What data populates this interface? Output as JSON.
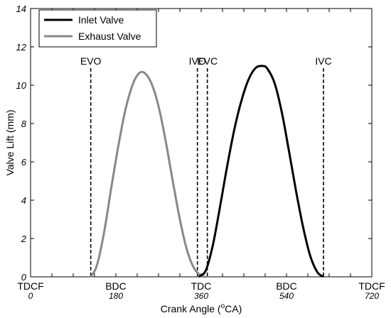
{
  "chart_data": {
    "type": "line",
    "xlabel": "Crank Angle (",
    "xlabel_sup": "o",
    "xlabel_tail": "CA)",
    "ylabel": "Valve Lift (mm)",
    "xlim": [
      0,
      720
    ],
    "ylim": [
      0,
      14
    ],
    "yticks": [
      0,
      2,
      4,
      6,
      8,
      10,
      12,
      14
    ],
    "xticks": [
      0,
      45,
      90,
      135,
      180,
      225,
      270,
      315,
      360,
      405,
      450,
      495,
      540,
      585,
      630,
      675,
      720
    ],
    "xtick_labels": [
      {
        "x": 0,
        "top": "TDCF",
        "bottom": "0"
      },
      {
        "x": 180,
        "top": "BDC",
        "bottom": "180"
      },
      {
        "x": 360,
        "top": "TDC",
        "bottom": "360"
      },
      {
        "x": 540,
        "top": "BDC",
        "bottom": "540"
      },
      {
        "x": 720,
        "top": "TDCF",
        "bottom": "720"
      }
    ],
    "legend_position": "top-left",
    "series": [
      {
        "name": "Inlet Valve",
        "color": "#000000",
        "x": [
          355,
          370,
          385,
          400,
          415,
          430,
          445,
          460,
          475,
          490,
          500,
          515,
          530,
          545,
          560,
          575,
          590,
          605,
          618
        ],
        "y": [
          0,
          0.35,
          1.7,
          3.7,
          5.8,
          7.7,
          9.2,
          10.3,
          10.9,
          11.0,
          10.85,
          10.1,
          8.6,
          6.6,
          4.5,
          2.6,
          1.1,
          0.25,
          0
        ]
      },
      {
        "name": "Exhaust Valve",
        "color": "#888888",
        "x": [
          127,
          140,
          155,
          170,
          185,
          200,
          215,
          228,
          240,
          255,
          270,
          285,
          300,
          315,
          330,
          345,
          360,
          370
        ],
        "y": [
          0,
          0.6,
          2.3,
          4.6,
          6.8,
          8.7,
          10.0,
          10.6,
          10.65,
          10.1,
          8.9,
          7.1,
          5.0,
          3.0,
          1.4,
          0.45,
          0.05,
          0
        ]
      }
    ],
    "markers": [
      {
        "label": "EVO",
        "x": 127
      },
      {
        "label": "IVO",
        "x": 352
      },
      {
        "label": "EVC",
        "x": 373
      },
      {
        "label": "IVC",
        "x": 618
      }
    ]
  }
}
